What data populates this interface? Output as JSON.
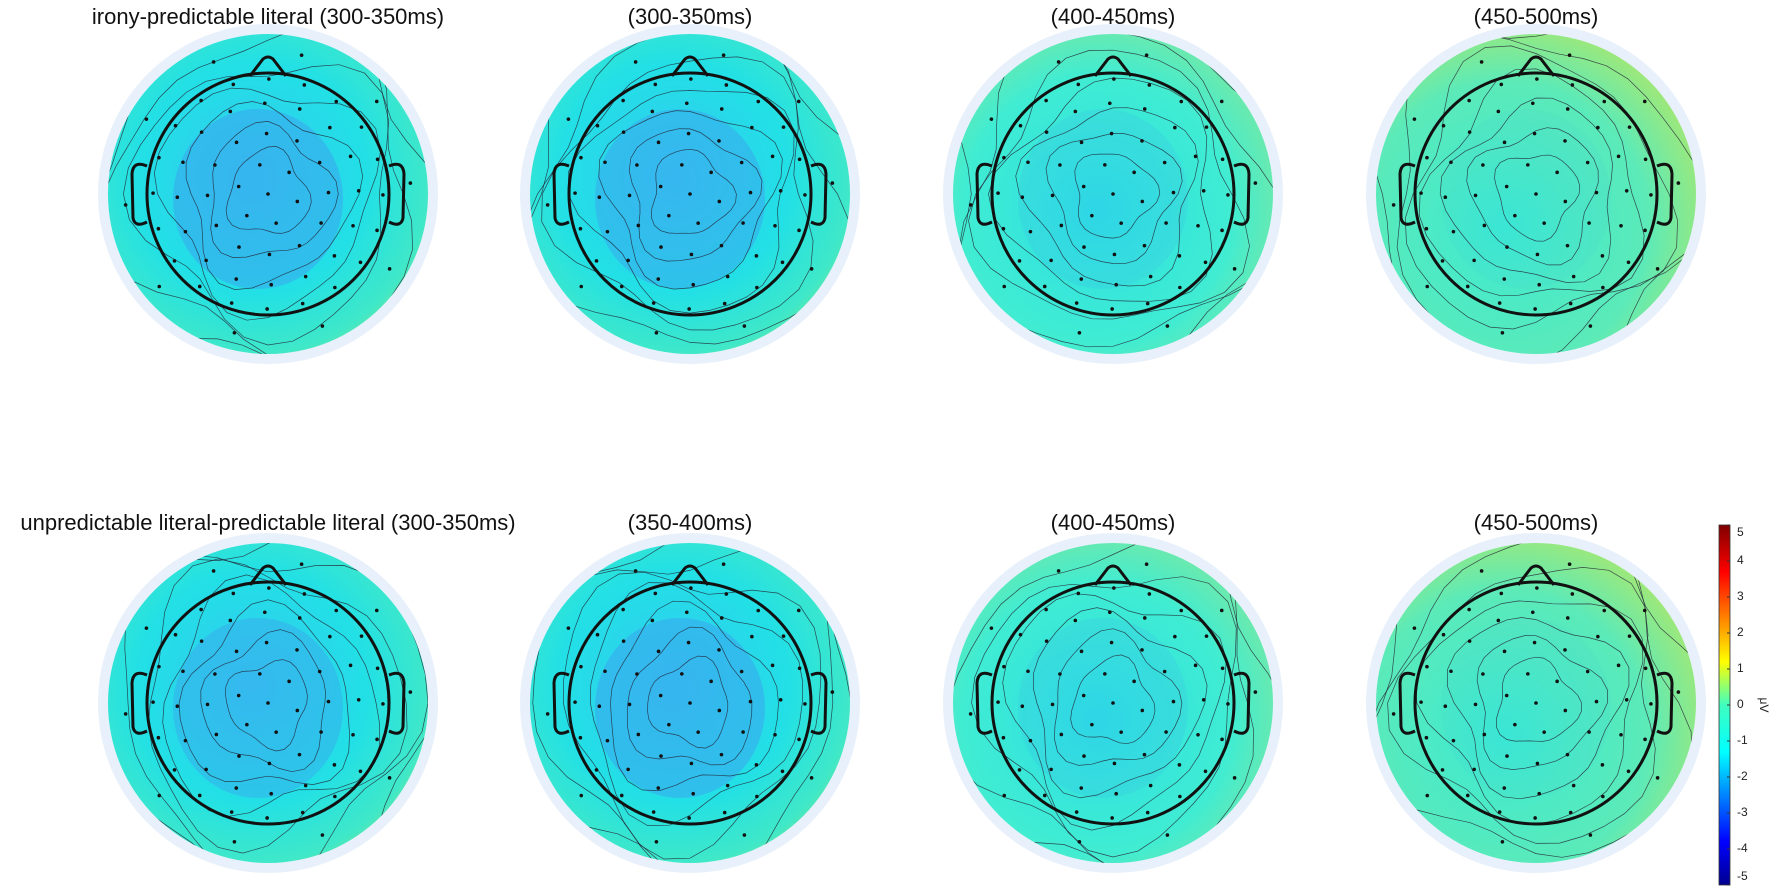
{
  "panels": [
    {
      "title": "irony-predictable literal (300-350ms)"
    },
    {
      "title": "(300-350ms)"
    },
    {
      "title": "(400-450ms)"
    },
    {
      "title": "(450-500ms)"
    },
    {
      "title": "unpredictable literal-predictable literal (300-350ms)"
    },
    {
      "title": "(350-400ms)"
    },
    {
      "title": "(400-450ms)"
    },
    {
      "title": "(450-500ms)"
    }
  ],
  "colorbar": {
    "label": "μV",
    "range": [
      -5,
      5
    ],
    "ticks": [
      5,
      4,
      3,
      2,
      1,
      0,
      -1,
      -2,
      -3,
      -4,
      -5
    ]
  }
}
